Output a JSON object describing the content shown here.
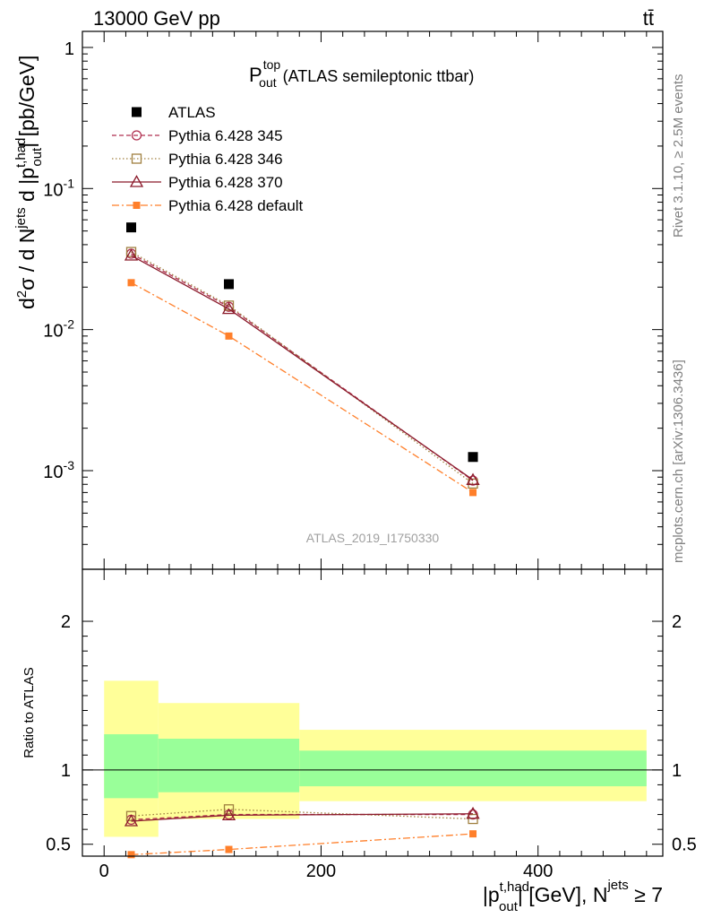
{
  "header": {
    "left": "13000 GeV pp",
    "right": "tt̄"
  },
  "side_text": {
    "rivet": "Rivet 3.1.10, ≥ 2.5M events",
    "mcplots": "mcplots.cern.ch [arXiv:1306.3436]"
  },
  "watermark": "ATLAS_2019_I1750330",
  "main_title": {
    "base": "P",
    "sup": "top",
    "sub": "out",
    "rest": " (ATLAS semileptonic ttbar)"
  },
  "colors": {
    "atlas": "#000000",
    "p345": "#b03050",
    "p346": "#a08040",
    "p370": "#8b1a2b",
    "pdefault": "#ff7f2a",
    "band_inner": "#99ff99",
    "band_outer": "#ffff99"
  },
  "chart_data": [
    {
      "type": "scatter",
      "panel": "main",
      "ylabel": "d²σ / d N^jets d |p_out^t,had| [pb/GeV]",
      "yscale": "log",
      "ylim": [
        0.0002,
        1.3
      ],
      "xlim": [
        -20,
        515
      ],
      "y_tick_labels": [
        "1",
        "10^-1",
        "10^-2",
        "10^-3"
      ],
      "legend_position": "top-left",
      "x": [
        25,
        115,
        340
      ],
      "series": [
        {
          "name": "ATLAS",
          "values": [
            0.053,
            0.021,
            0.00125
          ],
          "marker": "filled-square",
          "line": "none"
        },
        {
          "name": "Pythia 6.428 345",
          "values": [
            0.0345,
            0.0145,
            0.00085
          ],
          "marker": "open-circle",
          "line": "dashed"
        },
        {
          "name": "Pythia 6.428 346",
          "values": [
            0.0355,
            0.0148,
            0.00081
          ],
          "marker": "open-square",
          "line": "dotted"
        },
        {
          "name": "Pythia 6.428 370",
          "values": [
            0.0335,
            0.014,
            0.00086
          ],
          "marker": "open-triangle",
          "line": "solid"
        },
        {
          "name": "Pythia 6.428 default",
          "values": [
            0.0215,
            0.009,
            0.0007
          ],
          "marker": "filled-small-square",
          "line": "dash-dot"
        }
      ]
    },
    {
      "type": "scatter",
      "panel": "ratio",
      "xlabel": "|p_out^t,had| [GeV], N^jets ≥ 7",
      "ylabel": "Ratio to ATLAS",
      "ylim": [
        0.42,
        2.35
      ],
      "xlim": [
        -20,
        515
      ],
      "x_tick_labels": [
        "0",
        "200",
        "400"
      ],
      "y_tick_labels": [
        "0.5",
        "1",
        "2"
      ],
      "bins": [
        [
          0,
          50
        ],
        [
          50,
          180
        ],
        [
          180,
          500
        ]
      ],
      "band_inner": [
        [
          0.81,
          1.24
        ],
        [
          0.85,
          1.21
        ],
        [
          0.89,
          1.13
        ]
      ],
      "band_outer": [
        [
          0.55,
          1.6
        ],
        [
          0.67,
          1.45
        ],
        [
          0.79,
          1.27
        ]
      ],
      "reference": 1,
      "x": [
        25,
        115,
        340
      ],
      "series": [
        {
          "name": "Pythia 6.428 345",
          "values": [
            0.665,
            0.7,
            0.7
          ]
        },
        {
          "name": "Pythia 6.428 346",
          "values": [
            0.69,
            0.735,
            0.67
          ]
        },
        {
          "name": "Pythia 6.428 370",
          "values": [
            0.655,
            0.695,
            0.705
          ]
        },
        {
          "name": "Pythia 6.428 default",
          "values": [
            0.43,
            0.465,
            0.57
          ]
        }
      ]
    }
  ]
}
